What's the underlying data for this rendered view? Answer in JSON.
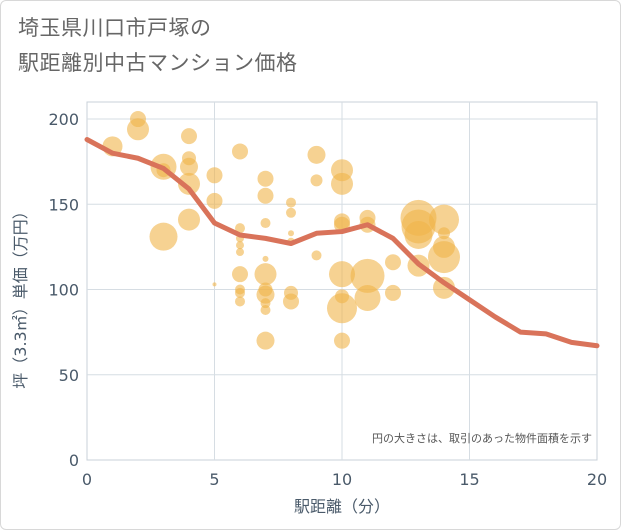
{
  "title_line1": "埼玉県川口市戸塚の",
  "title_line2": "駅距離別中古マンション価格",
  "chart_data": {
    "type": "scatter",
    "title": "埼玉県川口市戸塚の駅距離別中古マンション価格",
    "xlabel": "駅距離（分）",
    "ylabel": "坪（3.3㎡）単価（万円）",
    "xlim": [
      0,
      20
    ],
    "ylim": [
      0,
      210
    ],
    "xticks": [
      0,
      5,
      10,
      15,
      20
    ],
    "yticks": [
      0,
      50,
      100,
      150,
      200
    ],
    "grid": true,
    "note": "円の大きさは、取引のあった物件面積を示す",
    "colors": {
      "bubble": "#f0b44a",
      "line": "#d9735a"
    },
    "bubbles": [
      {
        "x": 1,
        "y": 184,
        "r": 10
      },
      {
        "x": 2,
        "y": 200,
        "r": 8
      },
      {
        "x": 2,
        "y": 194,
        "r": 11
      },
      {
        "x": 3,
        "y": 172,
        "r": 13
      },
      {
        "x": 3,
        "y": 131,
        "r": 14
      },
      {
        "x": 3,
        "y": 170,
        "r": 7
      },
      {
        "x": 4,
        "y": 190,
        "r": 8
      },
      {
        "x": 4,
        "y": 177,
        "r": 7
      },
      {
        "x": 4,
        "y": 172,
        "r": 9
      },
      {
        "x": 4,
        "y": 162,
        "r": 11
      },
      {
        "x": 4,
        "y": 141,
        "r": 11
      },
      {
        "x": 5,
        "y": 167,
        "r": 8
      },
      {
        "x": 5,
        "y": 152,
        "r": 8
      },
      {
        "x": 5,
        "y": 103,
        "r": 2
      },
      {
        "x": 6,
        "y": 181,
        "r": 8
      },
      {
        "x": 6,
        "y": 136,
        "r": 5
      },
      {
        "x": 6,
        "y": 130,
        "r": 4
      },
      {
        "x": 6,
        "y": 126,
        "r": 4
      },
      {
        "x": 6,
        "y": 122,
        "r": 4
      },
      {
        "x": 6,
        "y": 109,
        "r": 8
      },
      {
        "x": 6,
        "y": 100,
        "r": 5
      },
      {
        "x": 6,
        "y": 98,
        "r": 5
      },
      {
        "x": 6,
        "y": 93,
        "r": 5
      },
      {
        "x": 7,
        "y": 165,
        "r": 8
      },
      {
        "x": 7,
        "y": 155,
        "r": 8
      },
      {
        "x": 7,
        "y": 139,
        "r": 5
      },
      {
        "x": 7,
        "y": 118,
        "r": 3
      },
      {
        "x": 7,
        "y": 109,
        "r": 11
      },
      {
        "x": 7,
        "y": 100,
        "r": 7
      },
      {
        "x": 7,
        "y": 97,
        "r": 9
      },
      {
        "x": 7,
        "y": 92,
        "r": 5
      },
      {
        "x": 7,
        "y": 88,
        "r": 5
      },
      {
        "x": 7,
        "y": 70,
        "r": 9
      },
      {
        "x": 8,
        "y": 151,
        "r": 5
      },
      {
        "x": 8,
        "y": 145,
        "r": 5
      },
      {
        "x": 8,
        "y": 133,
        "r": 3
      },
      {
        "x": 8,
        "y": 128,
        "r": 4
      },
      {
        "x": 8,
        "y": 98,
        "r": 7
      },
      {
        "x": 8,
        "y": 93,
        "r": 8
      },
      {
        "x": 9,
        "y": 179,
        "r": 9
      },
      {
        "x": 9,
        "y": 164,
        "r": 6
      },
      {
        "x": 9,
        "y": 120,
        "r": 5
      },
      {
        "x": 10,
        "y": 170,
        "r": 11
      },
      {
        "x": 10,
        "y": 162,
        "r": 11
      },
      {
        "x": 10,
        "y": 140,
        "r": 8
      },
      {
        "x": 10,
        "y": 138,
        "r": 8
      },
      {
        "x": 10,
        "y": 109,
        "r": 13
      },
      {
        "x": 10,
        "y": 96,
        "r": 7
      },
      {
        "x": 10,
        "y": 89,
        "r": 15
      },
      {
        "x": 10,
        "y": 70,
        "r": 8
      },
      {
        "x": 11,
        "y": 142,
        "r": 8
      },
      {
        "x": 11,
        "y": 138,
        "r": 8
      },
      {
        "x": 11,
        "y": 108,
        "r": 17
      },
      {
        "x": 11,
        "y": 95,
        "r": 13
      },
      {
        "x": 12,
        "y": 116,
        "r": 8
      },
      {
        "x": 12,
        "y": 98,
        "r": 8
      },
      {
        "x": 13,
        "y": 142,
        "r": 18
      },
      {
        "x": 13,
        "y": 137,
        "r": 17
      },
      {
        "x": 13,
        "y": 132,
        "r": 14
      },
      {
        "x": 13,
        "y": 114,
        "r": 11
      },
      {
        "x": 14,
        "y": 141,
        "r": 15
      },
      {
        "x": 14,
        "y": 133,
        "r": 6
      },
      {
        "x": 14,
        "y": 125,
        "r": 11
      },
      {
        "x": 14,
        "y": 119,
        "r": 16
      },
      {
        "x": 14,
        "y": 101,
        "r": 11
      }
    ],
    "trend_line": {
      "x": [
        0,
        1,
        2,
        3,
        4,
        5,
        6,
        7,
        8,
        9,
        10,
        11,
        12,
        13,
        14,
        15,
        16,
        17,
        18,
        19,
        20
      ],
      "y": [
        188,
        180,
        177,
        171,
        159,
        139,
        132,
        130,
        127,
        133,
        134,
        138,
        130,
        115,
        104,
        94,
        84,
        75,
        74,
        69,
        67
      ]
    }
  }
}
